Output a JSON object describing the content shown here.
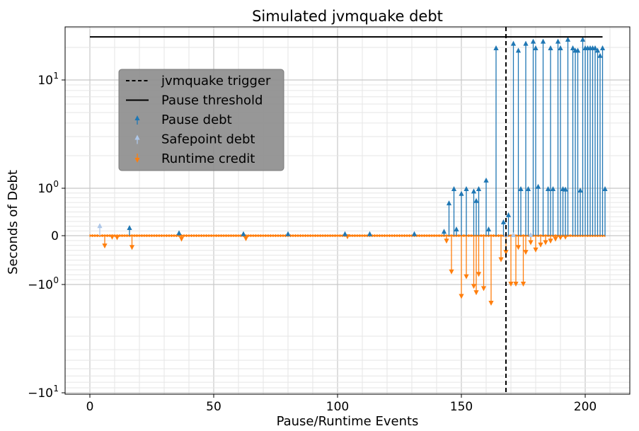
{
  "chart_data": {
    "type": "line",
    "title": "Simulated jvmquake debt",
    "xlabel": "Pause/Runtime Events",
    "ylabel": "Seconds of Debt",
    "xlim": [
      -10,
      218
    ],
    "ylim": [
      -10,
      30
    ],
    "y_scale": "symlog",
    "x_ticks": [
      "0",
      "50",
      "100",
      "150",
      "200"
    ],
    "y_ticks": [
      {
        "value": 10,
        "label": "10",
        "exp": "1"
      },
      {
        "value": 1,
        "label": "10",
        "exp": "0"
      },
      {
        "value": 0,
        "label": "0",
        "exp": ""
      },
      {
        "value": -1,
        "label": "−10",
        "exp": "0"
      },
      {
        "value": -10,
        "label": "−10",
        "exp": "1"
      }
    ],
    "grid": true,
    "legend_position": "upper-left",
    "legend": [
      {
        "label": "jvmquake trigger",
        "kind": "dashed-line"
      },
      {
        "label": "Pause threshold",
        "kind": "line"
      },
      {
        "label": "Pause debt",
        "kind": "up-marker"
      },
      {
        "label": "Safepoint debt",
        "kind": "up-marker"
      },
      {
        "label": "Runtime credit",
        "kind": "down-marker"
      }
    ],
    "pause_threshold": {
      "x": [
        0,
        207
      ],
      "y": 25
    },
    "jvmquake_trigger_x": 168,
    "colors": {
      "pause": "#1f77b4",
      "safepoint": "#aec7e8",
      "runtime": "#ff7f0e",
      "threshold": "#000000",
      "trigger": "#000000"
    },
    "series": [
      {
        "name": "Pause debt",
        "points": [
          [
            16,
            0.18
          ],
          [
            36,
            0.07
          ],
          [
            62,
            0.05
          ],
          [
            80,
            0.05
          ],
          [
            103,
            0.05
          ],
          [
            113,
            0.05
          ],
          [
            131,
            0.05
          ],
          [
            143,
            0.1
          ],
          [
            145,
            0.7
          ],
          [
            147,
            1.0
          ],
          [
            148,
            0.15
          ],
          [
            150,
            0.9
          ],
          [
            152,
            1.0
          ],
          [
            155,
            0.95
          ],
          [
            156,
            0.75
          ],
          [
            157,
            1.0
          ],
          [
            160,
            1.2
          ],
          [
            161,
            0.15
          ],
          [
            164,
            20
          ],
          [
            167,
            0.3
          ],
          [
            169,
            0.45
          ],
          [
            171,
            22
          ],
          [
            173,
            19
          ],
          [
            174,
            1.0
          ],
          [
            176,
            22
          ],
          [
            177,
            1.0
          ],
          [
            179,
            23
          ],
          [
            180,
            20
          ],
          [
            181,
            1.05
          ],
          [
            183,
            23
          ],
          [
            185,
            1.0
          ],
          [
            186,
            20
          ],
          [
            187,
            1.0
          ],
          [
            189,
            23
          ],
          [
            190,
            20
          ],
          [
            191,
            1.0
          ],
          [
            192,
            0.99
          ],
          [
            193,
            24
          ],
          [
            195,
            20
          ],
          [
            196,
            19
          ],
          [
            197,
            19
          ],
          [
            198,
            0.97
          ],
          [
            199,
            24
          ],
          [
            200,
            20
          ],
          [
            201,
            20
          ],
          [
            202,
            20
          ],
          [
            203,
            20
          ],
          [
            204,
            20
          ],
          [
            205,
            19
          ],
          [
            206,
            17
          ],
          [
            207,
            20
          ],
          [
            208,
            1.0
          ]
        ]
      },
      {
        "name": "Safepoint debt",
        "points": [
          [
            4,
            0.22
          ],
          [
            168,
            0.03
          ],
          [
            171,
            0.03
          ],
          [
            178,
            0.03
          ]
        ]
      },
      {
        "name": "Runtime credit",
        "points": [
          [
            6,
            -0.22
          ],
          [
            9,
            -0.04
          ],
          [
            11,
            -0.05
          ],
          [
            17,
            -0.25
          ],
          [
            37,
            -0.08
          ],
          [
            63,
            -0.07
          ],
          [
            104,
            -0.03
          ],
          [
            144,
            -0.12
          ],
          [
            146,
            -0.75
          ],
          [
            150,
            -1.3
          ],
          [
            152,
            -0.85
          ],
          [
            155,
            -1.05
          ],
          [
            156,
            -1.2
          ],
          [
            157,
            -0.8
          ],
          [
            159,
            -1.1
          ],
          [
            162,
            -1.5
          ],
          [
            166,
            -0.5
          ],
          [
            168,
            -0.35
          ],
          [
            170,
            -1.0
          ],
          [
            172,
            -1.0
          ],
          [
            173,
            -0.25
          ],
          [
            175,
            -1.0
          ],
          [
            176,
            -0.35
          ],
          [
            178,
            -0.15
          ],
          [
            180,
            -0.3
          ],
          [
            182,
            -0.2
          ],
          [
            184,
            -0.15
          ],
          [
            186,
            -0.12
          ],
          [
            188,
            -0.08
          ],
          [
            190,
            -0.05
          ],
          [
            192,
            -0.04
          ]
        ]
      }
    ]
  }
}
